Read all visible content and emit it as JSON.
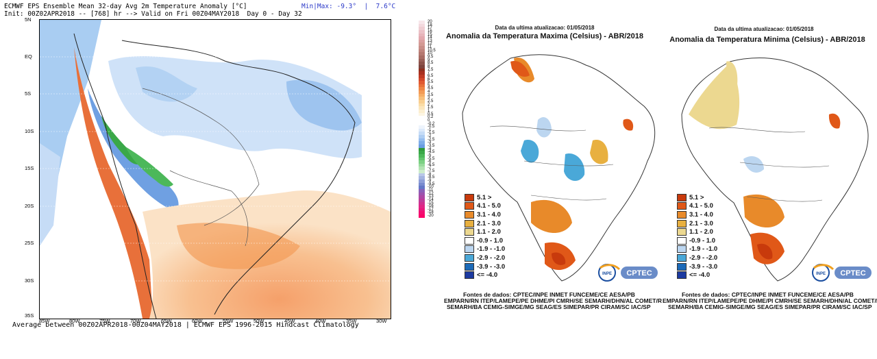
{
  "ecmwf": {
    "header_line1": "ECMWF EPS Ensemble Mean 32-day Avg 2m Temperature Anomaly [°C]",
    "header_line2": "Init: 00Z02APR2018 -- [768] hr --> Valid on Fri 00Z04MAY2018  Day 0 - Day 32",
    "minmax_label": "Min|Max: -9.3°  |  7.6°C",
    "footer": "Average between 00Z02APR2018-00Z04MAY2018 | ECMWF EPS 1996-2015 Hindcast Climatology",
    "lat_ticks": [
      "5N",
      "EQ",
      "5S",
      "10S",
      "15S",
      "20S",
      "25S",
      "30S",
      "35S"
    ],
    "lon_ticks": [
      "85W",
      "80W",
      "75W",
      "70W",
      "65W",
      "60W",
      "55W",
      "50W",
      "45W",
      "40W",
      "35W",
      "30W"
    ]
  },
  "colorbar": {
    "labels": [
      "20",
      "18",
      "17",
      "16",
      "15",
      "14",
      "13",
      "12",
      "11",
      "10.5",
      "10",
      "9.5",
      "9",
      "8.5",
      "8",
      "7.5",
      "7",
      "6.5",
      "6",
      "5.5",
      "5",
      "4.5",
      "4",
      "3.5",
      "3",
      "2.5",
      "2",
      "1.5",
      "1",
      "0.5",
      "0.2",
      "0",
      "-0.2",
      "-0.5",
      "-1",
      "-1.5",
      "-2",
      "-2.5",
      "-3",
      "-3.5",
      "-4",
      "-4.5",
      "-5",
      "-5.5",
      "-6",
      "-6.5",
      "-7",
      "-7.5",
      "-8",
      "-8.5",
      "-9",
      "-9.5",
      "-10",
      "-11",
      "-12",
      "-13",
      "-14",
      "-15",
      "-16",
      "-17",
      "-18",
      "-20"
    ],
    "colors": [
      "#f7e6ea",
      "#f3d9de",
      "#efcdd2",
      "#ebc0c6",
      "#e7b4ba",
      "#e3a8ae",
      "#dba0a0",
      "#d39a94",
      "#c98e88",
      "#bf837c",
      "#b47870",
      "#a86c64",
      "#9a5f57",
      "#8c524a",
      "#7e453e",
      "#903020",
      "#a83020",
      "#bf3a24",
      "#d3472a",
      "#e05a32",
      "#e8703a",
      "#ee8646",
      "#f39a55",
      "#f6ad66",
      "#f8bf7a",
      "#f9cf90",
      "#fadca6",
      "#fbe6bc",
      "#fcefd0",
      "#fdf5e2",
      "#ffffff",
      "#ffffff",
      "#ffffff",
      "#eef4fc",
      "#dce9fa",
      "#c6dcf6",
      "#aecdf2",
      "#95bdee",
      "#7dace8",
      "#6a9de3",
      "#2f9a3a",
      "#3aa848",
      "#4cb85a",
      "#62c56e",
      "#7bd083",
      "#97da9b",
      "#b2e3b3",
      "#cceccb",
      "#b9c7e8",
      "#a3b3e0",
      "#8e9fd8",
      "#798bcf",
      "#6478c7",
      "#8a60b8",
      "#9c54ae",
      "#ad48a4",
      "#be3c9a",
      "#cf3090",
      "#e02586",
      "#e9197c",
      "#f20e72",
      "#fb0368"
    ]
  },
  "brazil_max": {
    "date": "Data da ultima atualizacao: 01/05/2018",
    "title": "Anomalia da Temperatura Maxima (Celsius) - ABR/2018"
  },
  "brazil_min": {
    "date": "Data da ultima atualizacao: 01/05/2018",
    "title": "Anomalia da Temperatura Minima (Celsius) - ABR/2018"
  },
  "legend": [
    {
      "label": "5.1 >",
      "color": "#c83a0c"
    },
    {
      "label": "4.1 - 5.0",
      "color": "#e05818"
    },
    {
      "label": "3.1 - 4.0",
      "color": "#e88a2a"
    },
    {
      "label": "2.1 - 3.0",
      "color": "#e8b040"
    },
    {
      "label": "1.1 - 2.0",
      "color": "#ecd890"
    },
    {
      "label": "-0.9 - 1.0",
      "color": "#ffffff"
    },
    {
      "label": "-1.9 - -1.0",
      "color": "#bcd6f0"
    },
    {
      "label": "-2.9 - -2.0",
      "color": "#4aa8d8"
    },
    {
      "label": "-3.9 - -3.0",
      "color": "#1c6ab8"
    },
    {
      "label": "<= -4.0",
      "color": "#1c3aa0"
    }
  ],
  "logo": {
    "text": "CPTEC",
    "subtext": "INPE"
  },
  "sources": {
    "line1": "Fontes de dados: CPTEC/INPE INMET FUNCEME/CE AESA/PB",
    "line2": "EMPARN/RN ITEP/LAMEPE/PE DHME/PI CMRH/SE SEMARH/DHN/AL COMET/R",
    "line3": "SEMARH/BA CEMIG-SIMGE/MG SEAG/ES SIMEPAR/PR CIRAM/SC IAC/SP",
    "line2_right": "EMPARN/RN ITEP/LAMEPE/PE DHME/PI CMRH/SE SEMARH/DHN/AL COMET/RJ"
  }
}
